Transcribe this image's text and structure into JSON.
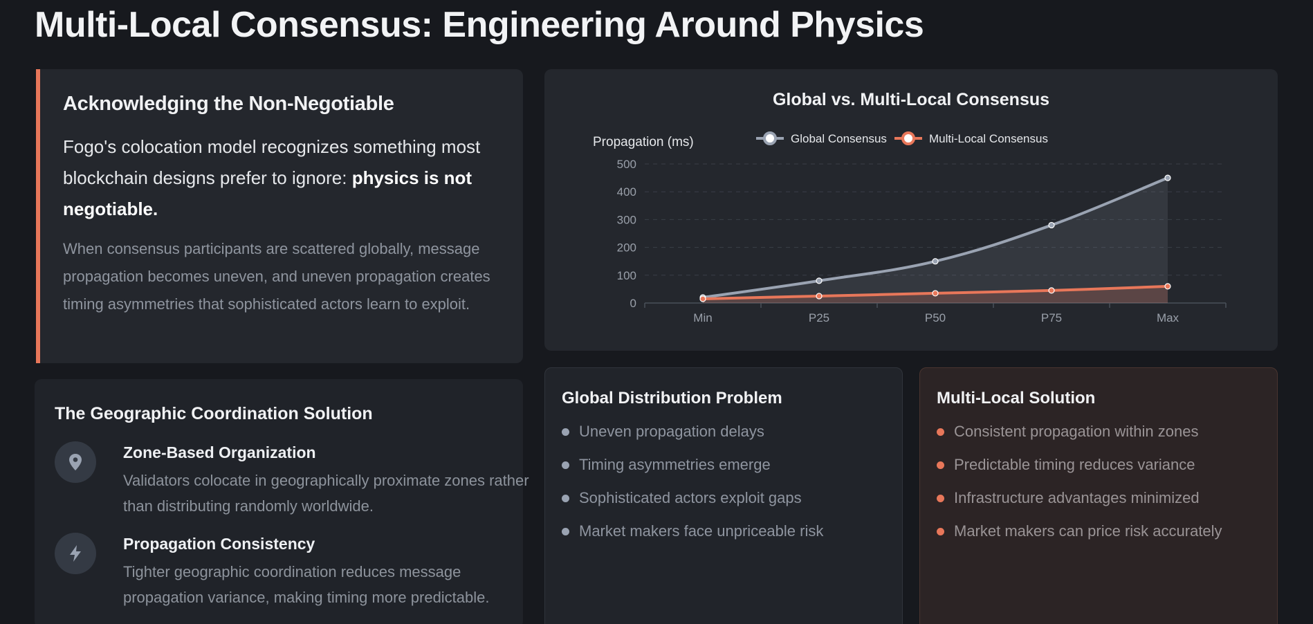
{
  "page": {
    "title": "Multi-Local Consensus: Engineering Around Physics"
  },
  "intro": {
    "heading": "Acknowledging the Non-Negotiable",
    "lead_text": "Fogo's colocation model recognizes something most blockchain designs prefer to ignore: ",
    "lead_bold": "physics is not negotiable.",
    "body": "When consensus participants are scattered globally, message propagation becomes uneven, and uneven propagation creates timing asymmetries that sophisticated actors learn to exploit.",
    "accent_color": "#e8775a"
  },
  "chart_data": {
    "type": "line",
    "title": "Global vs. Multi-Local Consensus",
    "ylabel": "Propagation (ms)",
    "xlabel": "",
    "categories": [
      "Min",
      "P25",
      "P50",
      "P75",
      "Max"
    ],
    "ylim": [
      0,
      500
    ],
    "yticks": [
      0,
      100,
      200,
      300,
      400,
      500
    ],
    "grid": true,
    "legend_position": "top",
    "series": [
      {
        "name": "Global Consensus",
        "values": [
          20,
          80,
          150,
          280,
          450
        ],
        "color": "#9aa3b2",
        "fill": true
      },
      {
        "name": "Multi-Local Consensus",
        "values": [
          15,
          25,
          35,
          45,
          60
        ],
        "color": "#e8775a",
        "fill": true
      }
    ]
  },
  "geo": {
    "heading": "The Geographic Coordination Solution",
    "items": [
      {
        "icon": "map-pin-icon",
        "title": "Zone-Based Organization",
        "desc": "Validators colocate in geographically proximate zones rather than distributing randomly worldwide."
      },
      {
        "icon": "lightning-icon",
        "title": "Propagation Consistency",
        "desc": "Tighter geographic coordination reduces message propagation variance, making timing more predictable."
      }
    ]
  },
  "problem": {
    "heading": "Global Distribution Problem",
    "items": [
      "Uneven propagation delays",
      "Timing asymmetries emerge",
      "Sophisticated actors exploit gaps",
      "Market makers face unpriceable risk"
    ]
  },
  "solution": {
    "heading": "Multi-Local Solution",
    "items": [
      "Consistent propagation within zones",
      "Predictable timing reduces variance",
      "Infrastructure advantages minimized",
      "Market makers can price risk accurately"
    ]
  }
}
